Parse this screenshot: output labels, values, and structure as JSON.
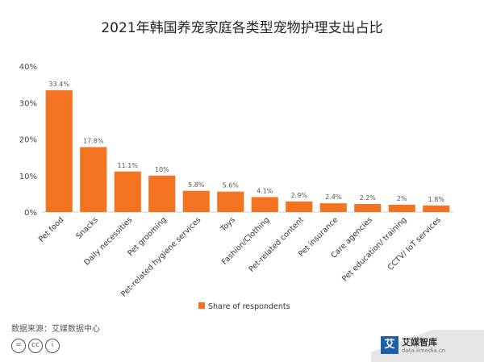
{
  "title": "2021年韩国养宠家庭各类型宠物护理支出占比",
  "source": "数据来源：艾媒数据中心",
  "brand": {
    "name": "艾媒智库",
    "url": "data.iimedia.cn",
    "logo_char": "艾"
  },
  "license_icons": [
    "=",
    "cc",
    "i"
  ],
  "colors": {
    "bar": "#f47320",
    "axis": "#cccccc",
    "grid": "#eeeeee"
  },
  "chart_data": {
    "type": "bar",
    "title": "2021年韩国养宠家庭各类型宠物护理支出占比",
    "categories": [
      "Pet food",
      "Snacks",
      "Daily necessities",
      "Pet grooming",
      "Pet-related hygiene services",
      "Toys",
      "Fashion/Clothing",
      "Pet-related content",
      "Pet insurance",
      "Care agencies",
      "Pet education/ training",
      "CCTV/ IoT services"
    ],
    "series": [
      {
        "name": "Share of respondents",
        "values": [
          33.4,
          17.8,
          11.1,
          10,
          5.8,
          5.6,
          4.1,
          2.9,
          2.4,
          2.2,
          2,
          1.8
        ]
      }
    ],
    "data_labels": [
      "33.4%",
      "17.8%",
      "11.1%",
      "10%",
      "5.8%",
      "5.6%",
      "4.1%",
      "2.9%",
      "2.4%",
      "2.2%",
      "2%",
      "1.8%"
    ],
    "ylim": [
      0,
      40
    ],
    "yticks": [
      0,
      10,
      20,
      30,
      40
    ],
    "ytick_labels": [
      "0%",
      "10%",
      "20%",
      "30%",
      "40%"
    ],
    "legend": "bottom",
    "grid": false
  }
}
